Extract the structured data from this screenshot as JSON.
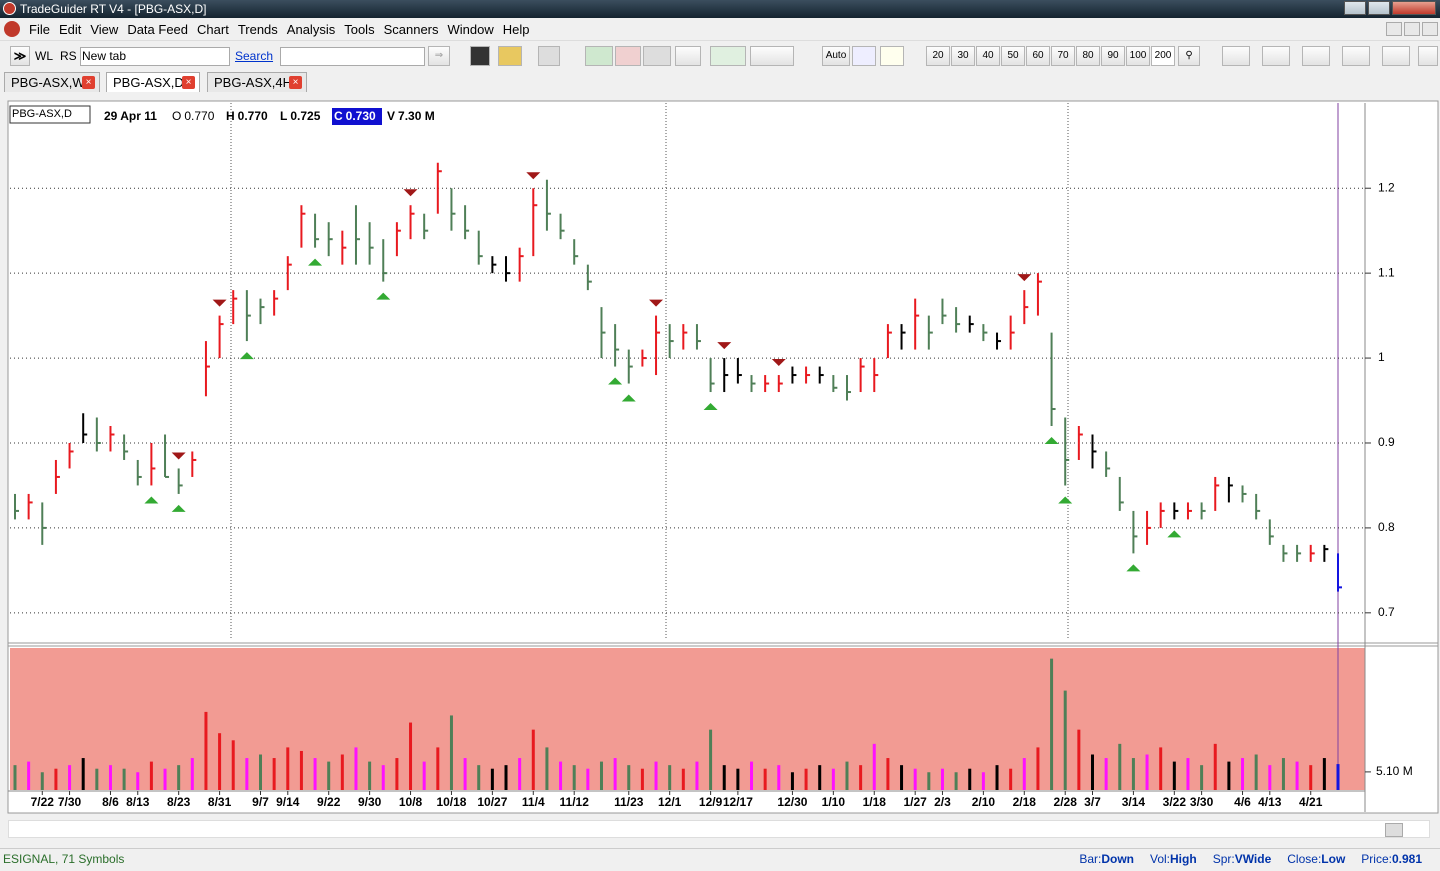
{
  "window": {
    "title": "TradeGuider RT V4 - [PBG-ASX,D]"
  },
  "menu": [
    "File",
    "Edit",
    "View",
    "Data Feed",
    "Chart",
    "Trends",
    "Analysis",
    "Tools",
    "Scanners",
    "Window",
    "Help"
  ],
  "toolbar": {
    "buttons": [
      "WL",
      "RS",
      "New tab"
    ],
    "search": "Search",
    "auto": "Auto",
    "zoom": [
      "20",
      "30",
      "40",
      "50",
      "60",
      "70",
      "80",
      "90",
      "100",
      "200"
    ]
  },
  "tabs": [
    "PBG-ASX,W",
    "PBG-ASX,D",
    "PBG-ASX,4H"
  ],
  "chart": {
    "type": "ohlc",
    "symbol": "PBG-ASX,D",
    "date": "29 Apr 11",
    "quote": [
      {
        "label": "O",
        "value": "0.770"
      },
      {
        "label": "H",
        "value": "0.770"
      },
      {
        "label": "L",
        "value": "0.725"
      },
      {
        "label": "C",
        "value": "0.730"
      },
      {
        "label": "V",
        "value": "7.30 M"
      }
    ],
    "xlim": [
      0,
      97
    ],
    "ylim": [
      0.668,
      1.298
    ],
    "yticks": [
      1.2,
      1.1,
      1,
      0.9,
      0.8,
      0.7
    ],
    "grid": true,
    "xticks": [
      {
        "value": 2,
        "label": "7/22"
      },
      {
        "value": 4,
        "label": "7/30"
      },
      {
        "value": 7,
        "label": "8/6"
      },
      {
        "value": 9,
        "label": "8/13"
      },
      {
        "value": 12,
        "label": "8/23"
      },
      {
        "value": 15,
        "label": "8/31"
      },
      {
        "value": 18,
        "label": "9/7"
      },
      {
        "value": 20,
        "label": "9/14"
      },
      {
        "value": 23,
        "label": "9/22"
      },
      {
        "value": 26,
        "label": "9/30"
      },
      {
        "value": 29,
        "label": "10/8"
      },
      {
        "value": 32,
        "label": "10/18"
      },
      {
        "value": 35,
        "label": "10/27"
      },
      {
        "value": 38,
        "label": "11/4"
      },
      {
        "value": 41,
        "label": "11/12"
      },
      {
        "value": 45,
        "label": "11/23"
      },
      {
        "value": 48,
        "label": "12/1"
      },
      {
        "value": 51,
        "label": "12/9"
      },
      {
        "value": 53,
        "label": "12/17"
      },
      {
        "value": 57,
        "label": "12/30"
      },
      {
        "value": 60,
        "label": "1/10"
      },
      {
        "value": 63,
        "label": "1/18"
      },
      {
        "value": 66,
        "label": "1/27"
      },
      {
        "value": 68,
        "label": "2/3"
      },
      {
        "value": 71,
        "label": "2/10"
      },
      {
        "value": 74,
        "label": "2/18"
      },
      {
        "value": 77,
        "label": "2/28"
      },
      {
        "value": 79,
        "label": "3/7"
      },
      {
        "value": 82,
        "label": "3/14"
      },
      {
        "value": 85,
        "label": "3/22"
      },
      {
        "value": 87,
        "label": "3/30"
      },
      {
        "value": 90,
        "label": "4/6"
      },
      {
        "value": 92,
        "label": "4/13"
      },
      {
        "value": 95,
        "label": "4/21"
      }
    ],
    "palette": {
      "r": "#e8191f",
      "g": "#4f7f57",
      "k": "#000000",
      "b": "#1414e0",
      "m": "#ff10ff"
    },
    "high": [
      0.84,
      0.84,
      0.83,
      0.88,
      0.9,
      0.935,
      0.93,
      0.92,
      0.91,
      0.88,
      0.9,
      0.91,
      0.87,
      0.89,
      1.02,
      1.05,
      1.08,
      1.08,
      1.07,
      1.08,
      1.12,
      1.18,
      1.17,
      1.16,
      1.15,
      1.18,
      1.16,
      1.14,
      1.16,
      1.18,
      1.17,
      1.23,
      1.2,
      1.18,
      1.15,
      1.12,
      1.12,
      1.13,
      1.2,
      1.21,
      1.17,
      1.14,
      1.11,
      1.06,
      1.04,
      1.01,
      1.01,
      1.05,
      1.04,
      1.04,
      1.04,
      1.0,
      1.0,
      1.0,
      0.98,
      0.98,
      0.98,
      0.99,
      0.99,
      0.99,
      0.98,
      0.98,
      1.0,
      1.0,
      1.04,
      1.04,
      1.07,
      1.05,
      1.07,
      1.06,
      1.05,
      1.04,
      1.03,
      1.05,
      1.08,
      1.1,
      1.03,
      0.93,
      0.92,
      0.91,
      0.89,
      0.86,
      0.82,
      0.82,
      0.83,
      0.83,
      0.83,
      0.83,
      0.86,
      0.86,
      0.85,
      0.84,
      0.81,
      0.78,
      0.78,
      0.78,
      0.78,
      0.77
    ],
    "low": [
      0.81,
      0.81,
      0.78,
      0.84,
      0.87,
      0.9,
      0.89,
      0.89,
      0.88,
      0.85,
      0.85,
      0.86,
      0.84,
      0.86,
      0.955,
      1.0,
      1.04,
      1.02,
      1.04,
      1.05,
      1.08,
      1.13,
      1.13,
      1.12,
      1.11,
      1.11,
      1.11,
      1.09,
      1.12,
      1.14,
      1.14,
      1.17,
      1.15,
      1.14,
      1.11,
      1.1,
      1.09,
      1.09,
      1.12,
      1.15,
      1.14,
      1.11,
      1.08,
      1.0,
      0.99,
      0.97,
      0.99,
      0.98,
      1.0,
      1.01,
      1.01,
      0.96,
      0.96,
      0.97,
      0.96,
      0.96,
      0.96,
      0.97,
      0.97,
      0.97,
      0.96,
      0.95,
      0.96,
      0.96,
      1.0,
      1.01,
      1.01,
      1.01,
      1.04,
      1.03,
      1.03,
      1.02,
      1.01,
      1.01,
      1.04,
      1.05,
      0.92,
      0.85,
      0.88,
      0.87,
      0.86,
      0.82,
      0.77,
      0.78,
      0.8,
      0.81,
      0.81,
      0.81,
      0.82,
      0.83,
      0.83,
      0.81,
      0.78,
      0.76,
      0.76,
      0.76,
      0.76,
      0.725
    ],
    "close": [
      0.82,
      0.83,
      0.8,
      0.86,
      0.89,
      0.91,
      0.9,
      0.91,
      0.89,
      0.86,
      0.87,
      0.86,
      0.85,
      0.88,
      0.99,
      1.04,
      1.07,
      1.05,
      1.06,
      1.07,
      1.11,
      1.17,
      1.14,
      1.14,
      1.13,
      1.14,
      1.13,
      1.1,
      1.15,
      1.17,
      1.15,
      1.22,
      1.17,
      1.15,
      1.12,
      1.11,
      1.1,
      1.12,
      1.18,
      1.17,
      1.15,
      1.12,
      1.09,
      1.03,
      1.01,
      0.99,
      1.0,
      1.03,
      1.02,
      1.03,
      1.02,
      0.97,
      0.98,
      0.98,
      0.97,
      0.97,
      0.97,
      0.98,
      0.98,
      0.98,
      0.965,
      0.96,
      0.99,
      0.98,
      1.03,
      1.03,
      1.05,
      1.03,
      1.05,
      1.04,
      1.04,
      1.03,
      1.02,
      1.03,
      1.06,
      1.09,
      0.94,
      0.88,
      0.91,
      0.89,
      0.87,
      0.83,
      0.79,
      0.8,
      0.82,
      0.82,
      0.82,
      0.82,
      0.85,
      0.85,
      0.84,
      0.82,
      0.79,
      0.77,
      0.77,
      0.77,
      0.775,
      0.73
    ],
    "colors": [
      "g",
      "r",
      "g",
      "r",
      "r",
      "k",
      "g",
      "r",
      "g",
      "g",
      "r",
      "g",
      "g",
      "r",
      "r",
      "r",
      "r",
      "g",
      "g",
      "r",
      "r",
      "r",
      "g",
      "g",
      "r",
      "g",
      "g",
      "g",
      "r",
      "r",
      "g",
      "r",
      "g",
      "g",
      "g",
      "k",
      "k",
      "r",
      "r",
      "g",
      "g",
      "g",
      "g",
      "g",
      "g",
      "g",
      "r",
      "r",
      "g",
      "r",
      "g",
      "g",
      "k",
      "k",
      "g",
      "r",
      "r",
      "k",
      "r",
      "k",
      "g",
      "g",
      "r",
      "r",
      "r",
      "k",
      "r",
      "g",
      "g",
      "g",
      "k",
      "g",
      "k",
      "r",
      "r",
      "r",
      "g",
      "g",
      "r",
      "k",
      "g",
      "g",
      "g",
      "r",
      "r",
      "k",
      "r",
      "g",
      "r",
      "k",
      "g",
      "g",
      "g",
      "g",
      "g",
      "r",
      "k",
      "b"
    ],
    "vlim": [
      0,
      40
    ],
    "vticks": [
      {
        "value": 5.1,
        "label": "5.10 M"
      }
    ],
    "volume": [
      7,
      8,
      5,
      6,
      7,
      9,
      6,
      7,
      6,
      5,
      8,
      6,
      7,
      9,
      22,
      16,
      14,
      9,
      10,
      9,
      12,
      11,
      9,
      8,
      10,
      12,
      8,
      7,
      9,
      19,
      8,
      12,
      21,
      9,
      7,
      6,
      7,
      9,
      17,
      12,
      8,
      7,
      6,
      8,
      9,
      7,
      6,
      8,
      7,
      6,
      8,
      17,
      7,
      6,
      8,
      6,
      7,
      5,
      6,
      7,
      6,
      8,
      7,
      13,
      9,
      7,
      6,
      5,
      6,
      5,
      6,
      5,
      7,
      6,
      9,
      12,
      37,
      28,
      17,
      10,
      9,
      13,
      9,
      10,
      12,
      8,
      9,
      7,
      13,
      8,
      9,
      10,
      7,
      9,
      8,
      7,
      9,
      7.3
    ],
    "volume_colors": [
      "g",
      "m",
      "g",
      "r",
      "m",
      "k",
      "g",
      "m",
      "g",
      "m",
      "r",
      "m",
      "g",
      "m",
      "r",
      "r",
      "r",
      "m",
      "g",
      "r",
      "r",
      "r",
      "m",
      "g",
      "r",
      "m",
      "g",
      "m",
      "r",
      "r",
      "m",
      "r",
      "g",
      "m",
      "g",
      "k",
      "k",
      "m",
      "r",
      "g",
      "m",
      "g",
      "m",
      "g",
      "m",
      "g",
      "r",
      "m",
      "g",
      "r",
      "m",
      "g",
      "k",
      "k",
      "m",
      "r",
      "m",
      "k",
      "r",
      "k",
      "m",
      "g",
      "r",
      "m",
      "r",
      "k",
      "m",
      "g",
      "m",
      "g",
      "k",
      "m",
      "k",
      "r",
      "m",
      "r",
      "g",
      "g",
      "r",
      "k",
      "m",
      "g",
      "g",
      "m",
      "r",
      "k",
      "m",
      "g",
      "r",
      "k",
      "m",
      "g",
      "m",
      "g",
      "m",
      "r",
      "k",
      "b"
    ],
    "down_signals": [
      12,
      15,
      29,
      38,
      47,
      52,
      56,
      74
    ],
    "up_signals": [
      10,
      12,
      17,
      22,
      27,
      44,
      45,
      51,
      76,
      77,
      82,
      85
    ]
  },
  "status": {
    "feed": "ESIGNAL, 71 Symbols",
    "items": [
      {
        "label": "Bar:",
        "value": "Down"
      },
      {
        "label": "Vol:",
        "value": "High"
      },
      {
        "label": "Spr:",
        "value": "VWide"
      },
      {
        "label": "Close:",
        "value": "Low"
      },
      {
        "label": "Price:",
        "value": "0.981"
      }
    ]
  }
}
